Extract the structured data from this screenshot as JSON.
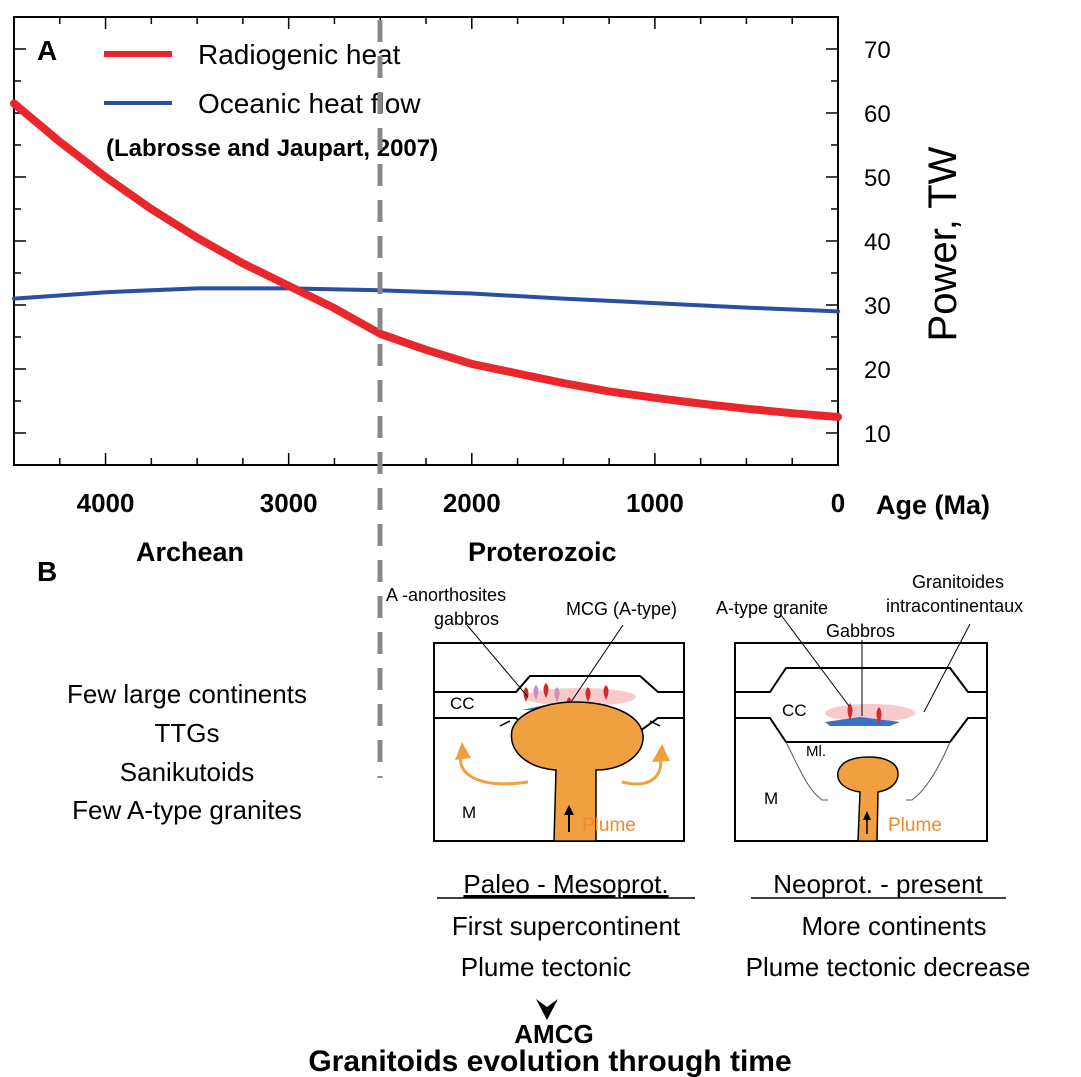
{
  "panel_a": {
    "label": "A",
    "legend": {
      "radiogenic": "Radiogenic heat",
      "oceanic": "Oceanic heat flow",
      "citation": "(Labrosse and Jaupart, 2007)"
    },
    "ylabel": "Power, TW",
    "xlabel": "Age (Ma)",
    "eons": {
      "archean": "Archean",
      "proterozoic": "Proterozoic"
    }
  },
  "chart_data": {
    "type": "line",
    "xlabel": "Age (Ma)",
    "ylabel": "Power, TW",
    "xlim": [
      4500,
      0
    ],
    "ylim": [
      5,
      75
    ],
    "x_ticks": [
      4000,
      3000,
      2000,
      1000,
      0
    ],
    "y_ticks": [
      10,
      20,
      30,
      40,
      50,
      60,
      70
    ],
    "boundary_age": 2500,
    "series": [
      {
        "name": "Radiogenic heat",
        "color": "#e8262b",
        "x": [
          4500,
          4250,
          4000,
          3750,
          3500,
          3250,
          3000,
          2750,
          2500,
          2250,
          2000,
          1750,
          1500,
          1250,
          1000,
          750,
          500,
          250,
          0
        ],
        "y": [
          61.5,
          55.5,
          50.0,
          45.0,
          40.5,
          36.5,
          33.0,
          29.5,
          25.5,
          23.0,
          20.8,
          19.3,
          17.8,
          16.5,
          15.5,
          14.6,
          13.8,
          13.1,
          12.5
        ]
      },
      {
        "name": "Oceanic heat flow",
        "color": "#2a4fa0",
        "x": [
          4500,
          4000,
          3500,
          3000,
          2500,
          2000,
          1500,
          1000,
          500,
          0
        ],
        "y": [
          31.0,
          32.0,
          32.6,
          32.6,
          32.3,
          31.8,
          31.0,
          30.3,
          29.6,
          29.0
        ]
      }
    ]
  },
  "panel_b": {
    "label": "B",
    "archean_list": [
      "Few large continents",
      "TTGs",
      "Sanikutoids",
      "Few A-type granites"
    ],
    "diagram1": {
      "label_cc": "CC",
      "label_m": "M",
      "label_plume": "Plume",
      "callout_left": [
        "A -anorthosites",
        "gabbros"
      ],
      "callout_right": "MCG (A-type)",
      "title": "Paleo - Mesoprot.",
      "caption": [
        "First supercontinent",
        "Plume tectonic"
      ]
    },
    "diagram2": {
      "label_cc": "CC",
      "label_m": "M",
      "label_ml": "Ml.",
      "label_plume": "Plume",
      "callout_left": "A-type granite",
      "callout_mid": "Gabbros",
      "callout_right": [
        "Granitoides",
        "intracontinentaux"
      ],
      "title": "Neoprot. - present",
      "caption": [
        "More continents",
        "Plume tectonic decrease"
      ]
    },
    "amcg": "AMCG",
    "footer_title": "Granitoids evolution through time"
  },
  "colors": {
    "radiogenic": "#e8262b",
    "oceanic": "#2a4fa0",
    "plume": "#f0a040",
    "plume_text": "#ee8a2a",
    "dashed": "#888888",
    "intrusion_pink": "#f7c4c6",
    "intrusion_blue": "#3b6fc8"
  }
}
